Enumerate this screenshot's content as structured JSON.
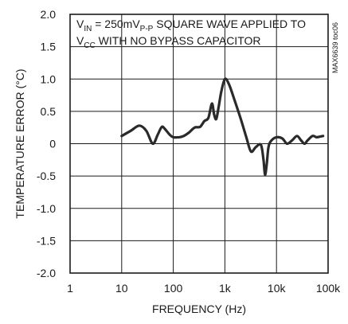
{
  "chart_data": {
    "type": "line",
    "xscale": "log",
    "xlim": [
      1,
      100000
    ],
    "ylim": [
      -2.0,
      2.0
    ],
    "grid": true,
    "xlabel": "FREQUENCY (Hz)",
    "ylabel": "TEMPERATURE ERROR (°C)",
    "x_ticks": [
      1,
      10,
      100,
      1000,
      10000,
      100000
    ],
    "x_tick_labels": [
      "1",
      "10",
      "100",
      "1k",
      "10k",
      "100k"
    ],
    "y_ticks": [
      2.0,
      1.5,
      1.0,
      0.5,
      0,
      -0.5,
      -1.0,
      -1.5,
      -2.0
    ],
    "y_tick_labels": [
      "2.0",
      "1.5",
      "1.0",
      "0.5",
      "0",
      "-0.5",
      "-1.0",
      "-1.5",
      "-2.0"
    ],
    "annotation": {
      "line1_a": "V",
      "line1_sub": "IN",
      "line1_b": " = 250mV",
      "line1_sub2": "P-P",
      "line1_c": " SQUARE WAVE APPLIED TO",
      "line2_a": "V",
      "line2_sub": "CC",
      "line2_b": " WITH NO BYPASS CAPACITOR"
    },
    "side_id": "MAX6639 toc06",
    "series": [
      {
        "x": [
          10,
          15,
          22,
          30,
          40,
          50,
          60,
          70,
          85,
          100,
          130,
          160,
          200,
          260,
          330,
          400,
          480,
          560,
          620,
          680,
          750,
          850,
          1000,
          1200,
          1500,
          2000,
          2600,
          3200,
          4000,
          5000,
          5600,
          6000,
          6500,
          7000,
          8000,
          10000,
          13000,
          16000,
          20000,
          25000,
          30000,
          35000,
          40000,
          50000,
          60000,
          70000,
          80000
        ],
        "y": [
          0.12,
          0.2,
          0.28,
          0.2,
          0.0,
          0.14,
          0.26,
          0.22,
          0.14,
          0.1,
          0.1,
          0.12,
          0.17,
          0.25,
          0.26,
          0.35,
          0.4,
          0.62,
          0.45,
          0.38,
          0.55,
          0.8,
          1.0,
          0.92,
          0.7,
          0.4,
          0.1,
          -0.12,
          -0.05,
          -0.02,
          -0.25,
          -0.48,
          -0.3,
          -0.05,
          0.05,
          0.1,
          0.08,
          0.0,
          0.05,
          0.12,
          0.05,
          0.0,
          0.05,
          0.12,
          0.1,
          0.11,
          0.12
        ]
      }
    ]
  }
}
